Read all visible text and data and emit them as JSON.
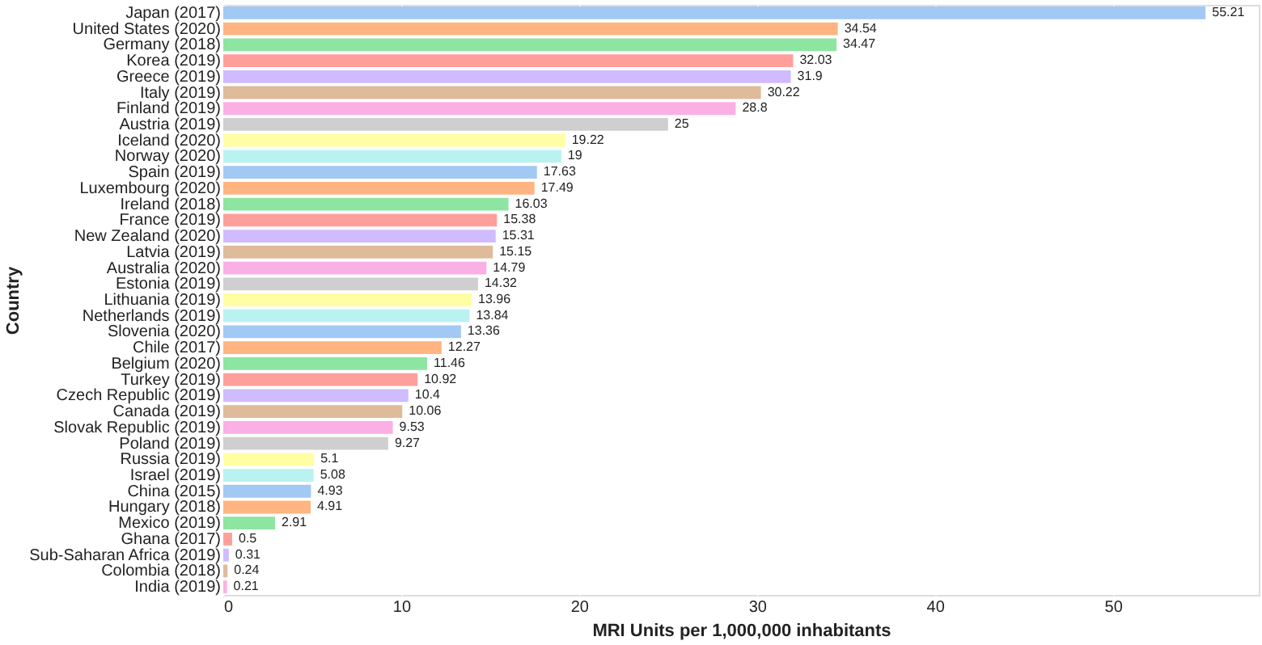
{
  "chart_data": {
    "type": "bar",
    "orientation": "horizontal",
    "xlabel": "MRI Units per 1,000,000 inhabitants",
    "ylabel": "Country",
    "categories": [
      "Japan (2017)",
      "United States (2020)",
      "Germany (2018)",
      "Korea (2019)",
      "Greece (2019)",
      "Italy (2019)",
      "Finland (2019)",
      "Austria (2019)",
      "Iceland (2020)",
      "Norway (2020)",
      "Spain (2019)",
      "Luxembourg (2020)",
      "Ireland (2018)",
      "France (2019)",
      "New Zealand (2020)",
      "Latvia (2019)",
      "Australia (2020)",
      "Estonia (2019)",
      "Lithuania (2019)",
      "Netherlands (2019)",
      "Slovenia (2020)",
      "Chile (2017)",
      "Belgium (2020)",
      "Turkey (2019)",
      "Czech Republic (2019)",
      "Canada (2019)",
      "Slovak Republic (2019)",
      "Poland (2019)",
      "Russia (2019)",
      "Israel (2019)",
      "China (2015)",
      "Hungary (2018)",
      "Mexico (2019)",
      "Ghana (2017)",
      "Sub-Saharan Africa (2019)",
      "Colombia (2018)",
      "India (2019)"
    ],
    "values": [
      55.21,
      34.54,
      34.47,
      32.03,
      31.9,
      30.22,
      28.8,
      25,
      19.22,
      19,
      17.63,
      17.49,
      16.03,
      15.38,
      15.31,
      15.15,
      14.79,
      14.32,
      13.96,
      13.84,
      13.36,
      12.27,
      11.46,
      10.92,
      10.4,
      10.06,
      9.53,
      9.27,
      5.1,
      5.08,
      4.93,
      4.91,
      2.91,
      0.5,
      0.31,
      0.24,
      0.21
    ],
    "colors": [
      "#a1c9f4",
      "#ffb482",
      "#8de5a1",
      "#ff9f9b",
      "#d0bbff",
      "#debb9b",
      "#fab0e4",
      "#cfcfcf",
      "#fffea3",
      "#b9f2f0",
      "#a1c9f4",
      "#ffb482",
      "#8de5a1",
      "#ff9f9b",
      "#d0bbff",
      "#debb9b",
      "#fab0e4",
      "#cfcfcf",
      "#fffea3",
      "#b9f2f0",
      "#a1c9f4",
      "#ffb482",
      "#8de5a1",
      "#ff9f9b",
      "#d0bbff",
      "#debb9b",
      "#fab0e4",
      "#cfcfcf",
      "#fffea3",
      "#b9f2f0",
      "#a1c9f4",
      "#ffb482",
      "#8de5a1",
      "#ff9f9b",
      "#d0bbff",
      "#debb9b",
      "#fab0e4"
    ],
    "xlim": [
      0,
      58.2
    ],
    "xticks": [
      0,
      10,
      20,
      30,
      40,
      50
    ],
    "grid": "x",
    "data_labels": true
  }
}
